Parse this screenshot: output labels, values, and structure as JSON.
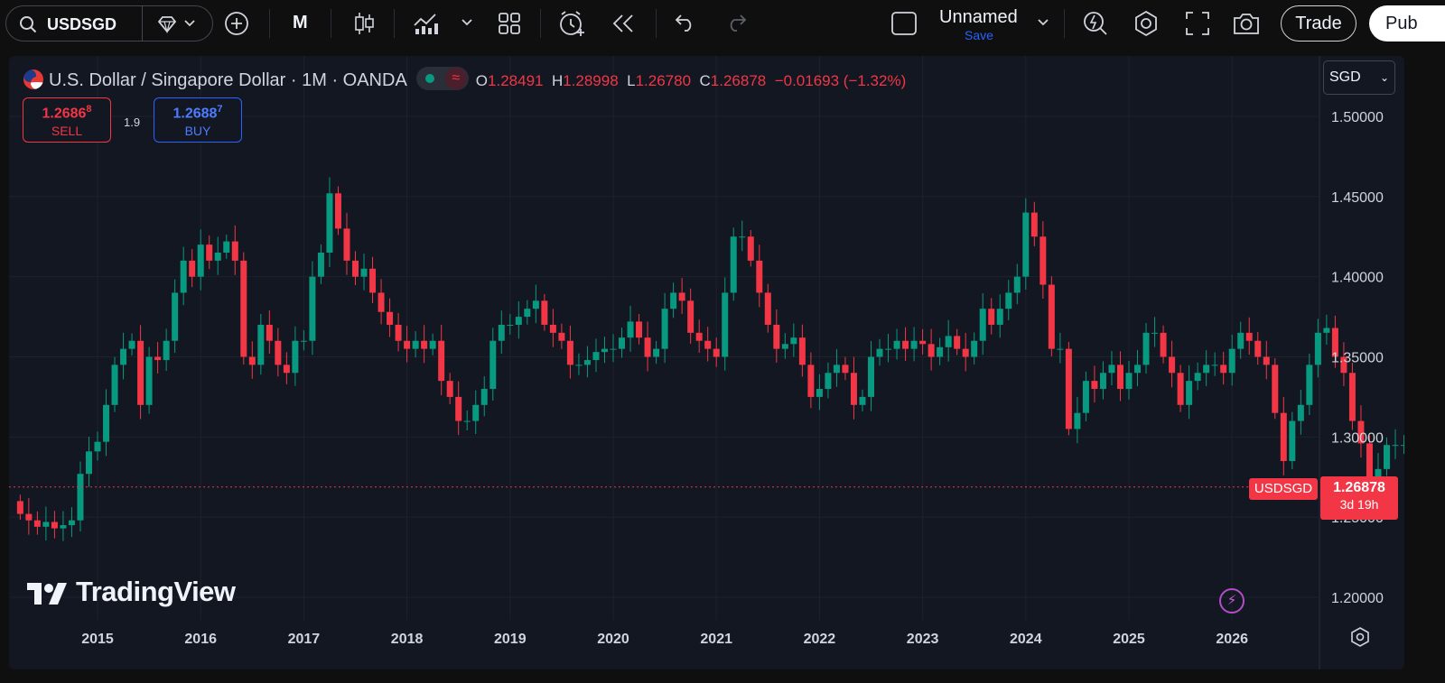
{
  "toolbar": {
    "symbol": "USDSGD",
    "interval": "M",
    "layout_name": "Unnamed",
    "save_label": "Save",
    "trade_label": "Trade",
    "publish_label": "Pub"
  },
  "legend": {
    "title": "U.S. Dollar / Singapore Dollar · 1M · OANDA",
    "status_icon": "≈",
    "o_label": "O",
    "o_value": "1.28491",
    "h_label": "H",
    "h_value": "1.28998",
    "l_label": "L",
    "l_value": "1.26780",
    "c_label": "C",
    "c_value": "1.26878",
    "change": "−0.01693 (−1.32%)"
  },
  "sell": {
    "price_main": "1.2686",
    "price_sup": "8",
    "label": "SELL"
  },
  "buy": {
    "price_main": "1.2688",
    "price_sup": "7",
    "label": "BUY"
  },
  "spread": "1.9",
  "currency": "SGD",
  "watermark": "TradingView",
  "last_price": {
    "symbol": "USDSGD",
    "price": "1.26878",
    "countdown": "3d 19h"
  },
  "colors": {
    "up": "#089981",
    "down": "#f23645",
    "background": "#131722",
    "grid": "#1e222d",
    "text": "#d1d4dc"
  },
  "chart_data": {
    "type": "candlestick",
    "title": "U.S. Dollar / Singapore Dollar · 1M · OANDA",
    "interval": "1M",
    "ylim": [
      1.19,
      1.52
    ],
    "y_ticks": [
      "1.20000",
      "1.25000",
      "1.30000",
      "1.35000",
      "1.40000",
      "1.45000",
      "1.50000"
    ],
    "x_ticks": [
      "2015",
      "2016",
      "2017",
      "2018",
      "2019",
      "2020",
      "2021",
      "2022",
      "2023",
      "2024",
      "2025",
      "2026"
    ],
    "x_start": "2014-04",
    "last_close": 1.26878,
    "grid": true,
    "closes": [
      1.252,
      1.248,
      1.244,
      1.247,
      1.243,
      1.245,
      1.248,
      1.277,
      1.291,
      1.297,
      1.32,
      1.345,
      1.355,
      1.36,
      1.32,
      1.35,
      1.348,
      1.36,
      1.39,
      1.41,
      1.4,
      1.42,
      1.41,
      1.415,
      1.422,
      1.41,
      1.35,
      1.345,
      1.37,
      1.36,
      1.345,
      1.34,
      1.36,
      1.36,
      1.4,
      1.415,
      1.452,
      1.43,
      1.41,
      1.4,
      1.405,
      1.39,
      1.378,
      1.37,
      1.36,
      1.355,
      1.36,
      1.355,
      1.36,
      1.335,
      1.325,
      1.31,
      1.31,
      1.32,
      1.33,
      1.36,
      1.37,
      1.37,
      1.375,
      1.38,
      1.385,
      1.37,
      1.365,
      1.36,
      1.345,
      1.345,
      1.348,
      1.353,
      1.355,
      1.355,
      1.362,
      1.372,
      1.362,
      1.35,
      1.355,
      1.38,
      1.39,
      1.385,
      1.365,
      1.36,
      1.355,
      1.35,
      1.39,
      1.425,
      1.425,
      1.41,
      1.39,
      1.37,
      1.355,
      1.358,
      1.362,
      1.345,
      1.325,
      1.33,
      1.34,
      1.345,
      1.34,
      1.32,
      1.325,
      1.35,
      1.355,
      1.355,
      1.36,
      1.355,
      1.36,
      1.358,
      1.35,
      1.356,
      1.363,
      1.355,
      1.35,
      1.36,
      1.38,
      1.37,
      1.38,
      1.39,
      1.4,
      1.44,
      1.425,
      1.395,
      1.355,
      1.355,
      1.305,
      1.315,
      1.335,
      1.33,
      1.34,
      1.345,
      1.33,
      1.34,
      1.345,
      1.365,
      1.365,
      1.35,
      1.34,
      1.32,
      1.335,
      1.34,
      1.345,
      1.345,
      1.34,
      1.355,
      1.365,
      1.36,
      1.35,
      1.345,
      1.315,
      1.285,
      1.31,
      1.32,
      1.345,
      1.365,
      1.368,
      1.35,
      1.34,
      1.31,
      1.296,
      1.275,
      1.28,
      1.295,
      1.295,
      1.295,
      1.295,
      1.3,
      1.295,
      1.28,
      1.26878
    ]
  }
}
